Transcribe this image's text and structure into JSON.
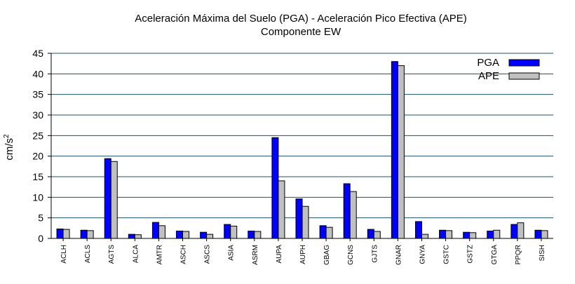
{
  "chart_data": {
    "type": "bar",
    "title": "Aceleración Máxima del Suelo (PGA) -  Aceleración Pico Efectiva (APE)",
    "subtitle": "Componente EW",
    "ylabel": "cm/s",
    "ylabel_superscript": "2",
    "xlabel": "",
    "ylim": [
      0,
      45
    ],
    "yticks": [
      0,
      5,
      10,
      15,
      20,
      25,
      30,
      35,
      40,
      45
    ],
    "grid": "horizontal",
    "legend_position": "top-right",
    "categories": [
      "ACLH",
      "ACLS",
      "AGTS",
      "ALCA",
      "AMTR",
      "ASCH",
      "ASCS",
      "ASIA",
      "ASRM",
      "AUPA",
      "AUPH",
      "GBAG",
      "GCNS",
      "GJTS",
      "GNAR",
      "GNYA",
      "GSTC",
      "GSTZ",
      "GTGA",
      "PPQR",
      "SISH"
    ],
    "series": [
      {
        "name": "PGA",
        "color": "#0000ff",
        "values": [
          2.3,
          2.0,
          19.4,
          1.0,
          3.9,
          1.8,
          1.5,
          3.4,
          1.8,
          24.5,
          9.6,
          3.1,
          13.3,
          2.2,
          43.0,
          4.1,
          2.0,
          1.5,
          1.8,
          3.4,
          2.0
        ]
      },
      {
        "name": "APE",
        "color": "#c0c0c0",
        "values": [
          2.2,
          1.9,
          18.7,
          0.9,
          3.1,
          1.7,
          1.0,
          3.0,
          1.7,
          14.0,
          7.8,
          2.7,
          11.4,
          1.7,
          42.0,
          1.0,
          1.9,
          1.4,
          2.0,
          3.8,
          1.9
        ]
      }
    ]
  }
}
